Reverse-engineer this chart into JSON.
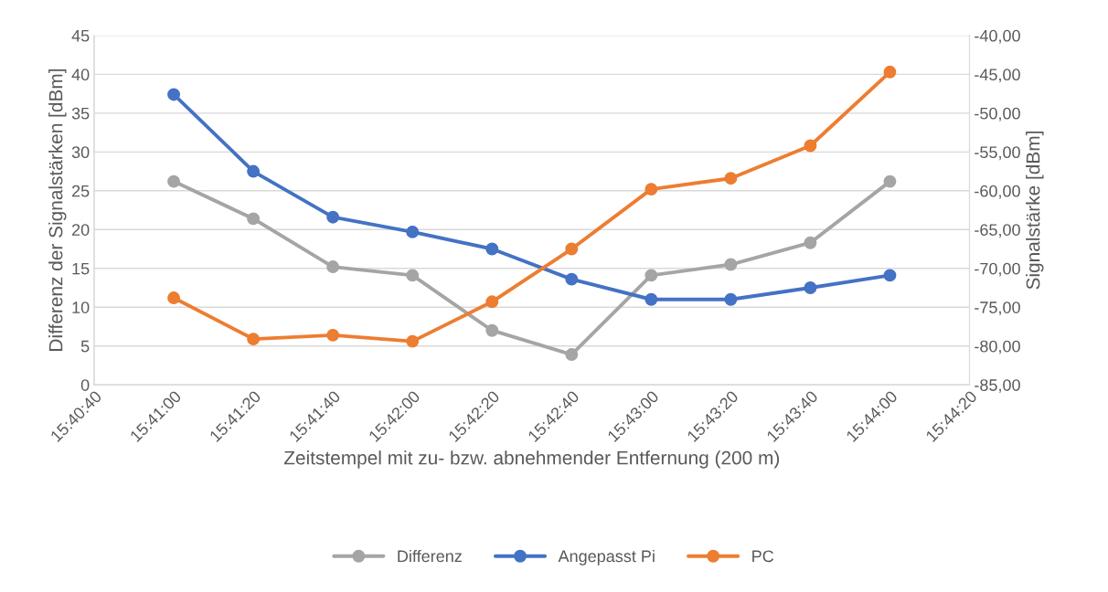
{
  "chart_data": {
    "type": "line",
    "xlabel": "Zeitstempel mit zu- bzw. abnehmender Entfernung (200 m)",
    "ylabel": "Differenz der Signalstärken [dBm]",
    "y2label": "Signalstärke [dBm]",
    "x": [
      15.683333,
      15.688889,
      15.694444,
      15.7,
      15.705556,
      15.711111,
      15.716667,
      15.722222,
      15.727778,
      15.733333
    ],
    "series": [
      {
        "name": "Differenz",
        "color": "#a5a5a5",
        "values": [
          26.2,
          21.4,
          15.2,
          14.1,
          7.0,
          3.9,
          14.1,
          15.5,
          18.3,
          26.2
        ]
      },
      {
        "name": "Angepasst Pi",
        "color": "#4472c4",
        "axis": "y2",
        "values": [
          -47.6,
          -57.5,
          -63.4,
          -65.3,
          -67.5,
          -71.4,
          -74.0,
          -74.0,
          -72.5,
          -70.9
        ]
      },
      {
        "name": "PC",
        "color": "#ed7d31",
        "axis": "y2",
        "values": [
          -73.8,
          -79.1,
          -78.6,
          -79.4,
          -74.3,
          -67.5,
          -59.8,
          -58.4,
          -54.2,
          -44.7
        ]
      }
    ],
    "xlim": [
      15.677778,
      15.738889
    ],
    "xticks": [
      {
        "value": 15.677778,
        "label": "15:40:40"
      },
      {
        "value": 15.683333,
        "label": "15:41:00"
      },
      {
        "value": 15.688889,
        "label": "15:41:20"
      },
      {
        "value": 15.694444,
        "label": "15:41:40"
      },
      {
        "value": 15.7,
        "label": "15:42:00"
      },
      {
        "value": 15.705556,
        "label": "15:42:20"
      },
      {
        "value": 15.711111,
        "label": "15:42:40"
      },
      {
        "value": 15.716667,
        "label": "15:43:00"
      },
      {
        "value": 15.722222,
        "label": "15:43:20"
      },
      {
        "value": 15.727778,
        "label": "15:43:40"
      },
      {
        "value": 15.733333,
        "label": "15:44:00"
      },
      {
        "value": 15.738889,
        "label": "15:44:20"
      }
    ],
    "ylim": [
      0,
      45
    ],
    "yticks": [
      0,
      5,
      10,
      15,
      20,
      25,
      30,
      35,
      40,
      45
    ],
    "y2lim": [
      -85,
      -40
    ],
    "y2ticks": [
      {
        "value": -85,
        "label": "-85,00"
      },
      {
        "value": -80,
        "label": "-80,00"
      },
      {
        "value": -75,
        "label": "-75,00"
      },
      {
        "value": -70,
        "label": "-70,00"
      },
      {
        "value": -65,
        "label": "-65,00"
      },
      {
        "value": -60,
        "label": "-60,00"
      },
      {
        "value": -55,
        "label": "-55,00"
      },
      {
        "value": -50,
        "label": "-50,00"
      },
      {
        "value": -45,
        "label": "-45,00"
      },
      {
        "value": -40,
        "label": "-40,00"
      }
    ],
    "grid": "y",
    "legend": "bottom",
    "marker": "circle",
    "line_style": "solid"
  }
}
